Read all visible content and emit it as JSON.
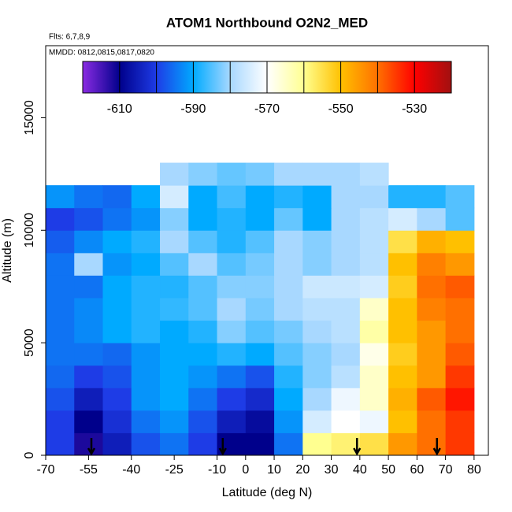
{
  "chart_data": {
    "type": "heatmap",
    "title": "ATOM1 Northbound O2N2_MED",
    "subtitle": "Flts: 6,7,8,9",
    "annotation": "MMDD: 0812,0815,0817,0820",
    "x_label": "Latitude (deg N)",
    "y_label": "Altitude (m)",
    "xlim": [
      -70,
      85
    ],
    "ylim": [
      0,
      18200
    ],
    "xticks": [
      -70,
      -55,
      -40,
      -25,
      -10,
      0,
      10,
      20,
      30,
      40,
      50,
      60,
      70,
      80
    ],
    "yticks": [
      0,
      5000,
      10000,
      15000
    ],
    "x_bins": [
      -70,
      -60,
      -50,
      -40,
      -30,
      -20,
      -10,
      0,
      10,
      20,
      30,
      40,
      50,
      60,
      70,
      80
    ],
    "y_bins": [
      0,
      1000,
      2000,
      3000,
      4000,
      5000,
      6000,
      7000,
      8000,
      9000,
      10000,
      11000,
      12000,
      13000
    ],
    "z": [
      [
        -600,
        -612,
        -605,
        -598,
        -595,
        -600,
        -610,
        -610,
        -595,
        -560,
        -558,
        -555,
        -545,
        -540,
        -535
      ],
      [
        -600,
        -610,
        -602,
        -595,
        -592,
        -598,
        -605,
        -608,
        -592,
        -575,
        -570,
        -572,
        -550,
        -540,
        -535
      ],
      [
        -598,
        -605,
        -600,
        -592,
        -590,
        -595,
        -600,
        -603,
        -590,
        -580,
        -572,
        -565,
        -548,
        -538,
        -532
      ],
      [
        -596,
        -600,
        -598,
        -592,
        -590,
        -592,
        -595,
        -598,
        -588,
        -582,
        -578,
        -565,
        -550,
        -545,
        -535
      ],
      [
        -595,
        -595,
        -596,
        -592,
        -590,
        -590,
        -588,
        -590,
        -585,
        -582,
        -580,
        -568,
        -552,
        -545,
        -538
      ],
      [
        -595,
        -593,
        -590,
        -588,
        -590,
        -588,
        -582,
        -585,
        -583,
        -580,
        -578,
        -562,
        -550,
        -545,
        -540
      ],
      [
        -595,
        -593,
        -590,
        -588,
        -587,
        -585,
        -580,
        -583,
        -580,
        -578,
        -578,
        -565,
        -550,
        -542,
        -540
      ],
      [
        -595,
        -595,
        -590,
        -588,
        -588,
        -585,
        -582,
        -582,
        -580,
        -576,
        -576,
        -575,
        -552,
        -540,
        -538
      ],
      [
        -595,
        -580,
        -592,
        -590,
        -585,
        -580,
        -585,
        -583,
        -580,
        -582,
        -580,
        -578,
        -550,
        -542,
        -545
      ],
      [
        -597,
        -593,
        -590,
        -588,
        -580,
        -585,
        -588,
        -585,
        -580,
        -582,
        -580,
        -578,
        -555,
        -548,
        -550
      ],
      [
        -600,
        -598,
        -595,
        -592,
        -582,
        -590,
        -588,
        -590,
        -584,
        -590,
        -580,
        -578,
        -575,
        -580,
        -585
      ],
      [
        -592,
        -595,
        -596,
        -590,
        -575,
        -590,
        -586,
        -590,
        -588,
        -590,
        -580,
        -580,
        -588,
        -588,
        -585
      ],
      [
        null,
        null,
        null,
        null,
        -580,
        -582,
        -584,
        -583,
        -580,
        -580,
        -580,
        -578,
        null,
        null,
        null
      ]
    ],
    "clim": [
      -620,
      -520
    ],
    "colorbar_ticks": [
      -610,
      -590,
      -570,
      -550,
      -530
    ],
    "colorscale": [
      {
        "value": -620,
        "color": "#8a2be2"
      },
      {
        "value": -610,
        "color": "#00008b"
      },
      {
        "value": -600,
        "color": "#1e3ce6"
      },
      {
        "value": -590,
        "color": "#00aaff"
      },
      {
        "value": -580,
        "color": "#a8d8ff"
      },
      {
        "value": -570,
        "color": "#ffffff"
      },
      {
        "value": -560,
        "color": "#ffff90"
      },
      {
        "value": -550,
        "color": "#ffc000"
      },
      {
        "value": -540,
        "color": "#ff7000"
      },
      {
        "value": -530,
        "color": "#ff0000"
      },
      {
        "value": -520,
        "color": "#a01010"
      }
    ],
    "arrows": [
      -54,
      -8,
      39,
      67
    ]
  }
}
